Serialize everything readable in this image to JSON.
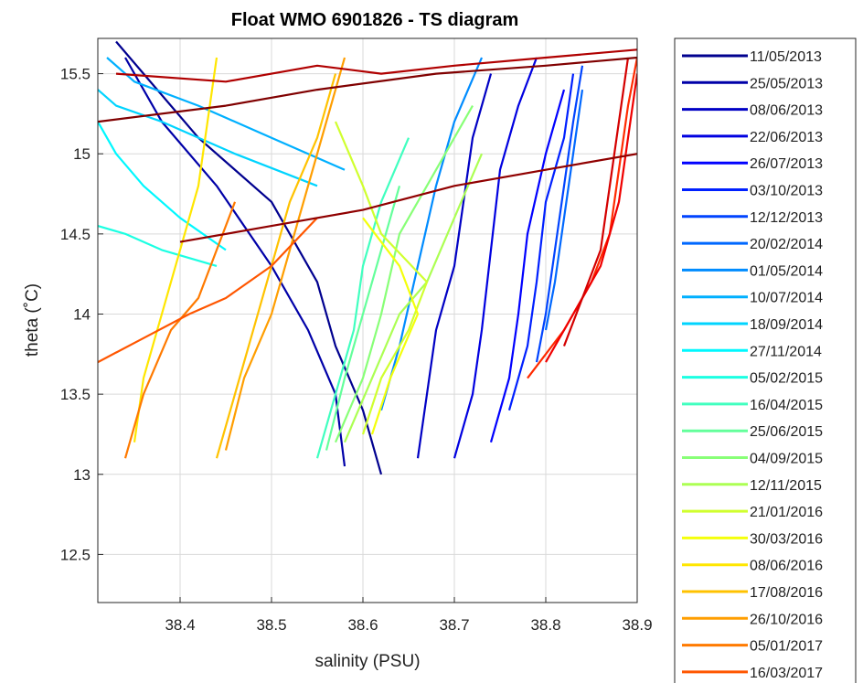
{
  "chart_data": {
    "type": "line",
    "title": "Float WMO 6901826 - TS diagram",
    "xlabel": "salinity (PSU)",
    "ylabel": "theta (˚C)",
    "xlim": [
      38.31,
      38.9
    ],
    "ylim": [
      12.2,
      15.72
    ],
    "xticks": [
      "38.4",
      "38.5",
      "38.6",
      "38.7",
      "38.8",
      "38.9"
    ],
    "yticks": [
      "12.5",
      "13",
      "13.5",
      "14",
      "14.5",
      "15",
      "15.5"
    ],
    "xtick_values": [
      38.4,
      38.5,
      38.6,
      38.7,
      38.8,
      38.9
    ],
    "ytick_values": [
      12.5,
      13,
      13.5,
      14,
      14.5,
      15,
      15.5
    ],
    "grid": true,
    "legend_placement": "outside-right",
    "colormap": "jet",
    "series": [
      {
        "name": "11/05/2013",
        "color": "#00008f",
        "points": [
          [
            38.62,
            13.0
          ],
          [
            38.6,
            13.4
          ],
          [
            38.57,
            13.8
          ],
          [
            38.55,
            14.2
          ],
          [
            38.5,
            14.7
          ],
          [
            38.42,
            15.1
          ],
          [
            38.36,
            15.5
          ],
          [
            38.33,
            15.7
          ]
        ]
      },
      {
        "name": "25/05/2013",
        "color": "#0000a8",
        "points": [
          [
            38.58,
            13.05
          ],
          [
            38.57,
            13.5
          ],
          [
            38.54,
            13.9
          ],
          [
            38.5,
            14.3
          ],
          [
            38.44,
            14.8
          ],
          [
            38.38,
            15.2
          ],
          [
            38.34,
            15.6
          ]
        ]
      },
      {
        "name": "08/06/2013",
        "color": "#0000c4",
        "points": [
          [
            38.66,
            13.1
          ],
          [
            38.67,
            13.5
          ],
          [
            38.68,
            13.9
          ],
          [
            38.7,
            14.3
          ],
          [
            38.71,
            14.7
          ],
          [
            38.72,
            15.1
          ],
          [
            38.74,
            15.5
          ]
        ]
      },
      {
        "name": "22/06/2013",
        "color": "#0000e0",
        "points": [
          [
            38.7,
            13.1
          ],
          [
            38.72,
            13.5
          ],
          [
            38.73,
            13.9
          ],
          [
            38.74,
            14.4
          ],
          [
            38.75,
            14.9
          ],
          [
            38.77,
            15.3
          ],
          [
            38.79,
            15.6
          ]
        ]
      },
      {
        "name": "26/07/2013",
        "color": "#0000ff",
        "points": [
          [
            38.74,
            13.2
          ],
          [
            38.76,
            13.6
          ],
          [
            38.77,
            14.0
          ],
          [
            38.78,
            14.5
          ],
          [
            38.8,
            15.0
          ],
          [
            38.82,
            15.4
          ]
        ]
      },
      {
        "name": "03/10/2013",
        "color": "#0020ff",
        "points": [
          [
            38.76,
            13.4
          ],
          [
            38.78,
            13.8
          ],
          [
            38.79,
            14.2
          ],
          [
            38.8,
            14.7
          ],
          [
            38.82,
            15.1
          ],
          [
            38.83,
            15.5
          ]
        ]
      },
      {
        "name": "12/12/2013",
        "color": "#0044ff",
        "points": [
          [
            38.79,
            13.7
          ],
          [
            38.8,
            14.0
          ],
          [
            38.81,
            14.4
          ],
          [
            38.82,
            14.8
          ],
          [
            38.83,
            15.2
          ],
          [
            38.84,
            15.55
          ]
        ]
      },
      {
        "name": "20/02/2014",
        "color": "#0068ff",
        "points": [
          [
            38.8,
            13.9
          ],
          [
            38.81,
            14.2
          ],
          [
            38.82,
            14.6
          ],
          [
            38.83,
            15.0
          ],
          [
            38.84,
            15.4
          ]
        ]
      },
      {
        "name": "01/05/2014",
        "color": "#008cff",
        "points": [
          [
            38.62,
            13.4
          ],
          [
            38.64,
            13.8
          ],
          [
            38.66,
            14.3
          ],
          [
            38.68,
            14.8
          ],
          [
            38.7,
            15.2
          ],
          [
            38.73,
            15.6
          ]
        ]
      },
      {
        "name": "10/07/2014",
        "color": "#00b0ff",
        "points": [
          [
            38.58,
            14.9
          ],
          [
            38.5,
            15.1
          ],
          [
            38.42,
            15.3
          ],
          [
            38.35,
            15.45
          ],
          [
            38.32,
            15.6
          ]
        ]
      },
      {
        "name": "18/09/2014",
        "color": "#00d4ff",
        "points": [
          [
            38.55,
            14.8
          ],
          [
            38.46,
            15.0
          ],
          [
            38.38,
            15.2
          ],
          [
            38.33,
            15.3
          ],
          [
            38.31,
            15.4
          ]
        ]
      },
      {
        "name": "27/11/2014",
        "color": "#00f8ff",
        "points": [
          [
            38.45,
            14.4
          ],
          [
            38.4,
            14.6
          ],
          [
            38.36,
            14.8
          ],
          [
            38.33,
            15.0
          ],
          [
            38.31,
            15.2
          ]
        ]
      },
      {
        "name": "05/02/2015",
        "color": "#1cffe2",
        "points": [
          [
            38.44,
            14.3
          ],
          [
            38.38,
            14.4
          ],
          [
            38.34,
            14.5
          ],
          [
            38.31,
            14.55
          ]
        ]
      },
      {
        "name": "16/04/2015",
        "color": "#40ffbf",
        "points": [
          [
            38.55,
            13.1
          ],
          [
            38.57,
            13.5
          ],
          [
            38.59,
            13.9
          ],
          [
            38.6,
            14.3
          ],
          [
            38.62,
            14.7
          ],
          [
            38.65,
            15.1
          ]
        ]
      },
      {
        "name": "25/06/2015",
        "color": "#64ff9b",
        "points": [
          [
            38.56,
            13.15
          ],
          [
            38.58,
            13.6
          ],
          [
            38.6,
            14.0
          ],
          [
            38.62,
            14.4
          ],
          [
            38.64,
            14.8
          ]
        ]
      },
      {
        "name": "04/09/2015",
        "color": "#88ff77",
        "points": [
          [
            38.57,
            13.2
          ],
          [
            38.6,
            13.6
          ],
          [
            38.62,
            14.0
          ],
          [
            38.64,
            14.5
          ],
          [
            38.68,
            14.9
          ],
          [
            38.72,
            15.3
          ]
        ]
      },
      {
        "name": "12/11/2015",
        "color": "#acff53",
        "points": [
          [
            38.58,
            13.2
          ],
          [
            38.61,
            13.6
          ],
          [
            38.64,
            14.0
          ],
          [
            38.67,
            14.2
          ],
          [
            38.7,
            14.6
          ],
          [
            38.73,
            15.0
          ]
        ]
      },
      {
        "name": "21/01/2016",
        "color": "#d0ff2f",
        "points": [
          [
            38.6,
            13.25
          ],
          [
            38.62,
            13.6
          ],
          [
            38.65,
            13.9
          ],
          [
            38.67,
            14.2
          ],
          [
            38.62,
            14.5
          ],
          [
            38.6,
            14.8
          ],
          [
            38.57,
            15.2
          ]
        ]
      },
      {
        "name": "30/03/2016",
        "color": "#f4ff0b",
        "points": [
          [
            38.61,
            13.25
          ],
          [
            38.63,
            13.6
          ],
          [
            38.66,
            14.0
          ],
          [
            38.64,
            14.3
          ],
          [
            38.6,
            14.6
          ]
        ]
      },
      {
        "name": "08/06/2016",
        "color": "#ffe600",
        "points": [
          [
            38.35,
            13.2
          ],
          [
            38.36,
            13.6
          ],
          [
            38.38,
            14.0
          ],
          [
            38.4,
            14.4
          ],
          [
            38.42,
            14.8
          ],
          [
            38.43,
            15.2
          ],
          [
            38.44,
            15.6
          ]
        ]
      },
      {
        "name": "17/08/2016",
        "color": "#ffc200",
        "points": [
          [
            38.44,
            13.1
          ],
          [
            38.46,
            13.5
          ],
          [
            38.48,
            13.9
          ],
          [
            38.5,
            14.3
          ],
          [
            38.52,
            14.7
          ],
          [
            38.55,
            15.1
          ],
          [
            38.57,
            15.5
          ]
        ]
      },
      {
        "name": "26/10/2016",
        "color": "#ff9e00",
        "points": [
          [
            38.45,
            13.15
          ],
          [
            38.47,
            13.6
          ],
          [
            38.5,
            14.0
          ],
          [
            38.52,
            14.4
          ],
          [
            38.54,
            14.8
          ],
          [
            38.56,
            15.2
          ],
          [
            38.58,
            15.6
          ]
        ]
      },
      {
        "name": "05/01/2017",
        "color": "#ff7a00",
        "points": [
          [
            38.34,
            13.1
          ],
          [
            38.36,
            13.5
          ],
          [
            38.39,
            13.9
          ],
          [
            38.42,
            14.1
          ],
          [
            38.44,
            14.4
          ],
          [
            38.46,
            14.7
          ]
        ]
      },
      {
        "name": "16/03/2017",
        "color": "#ff5600",
        "points": [
          [
            38.31,
            13.7
          ],
          [
            38.36,
            13.85
          ],
          [
            38.41,
            14.0
          ],
          [
            38.45,
            14.1
          ],
          [
            38.5,
            14.3
          ],
          [
            38.55,
            14.6
          ]
        ]
      }
    ],
    "extra_curves": [
      {
        "color": "#ff2a00",
        "points": [
          [
            38.78,
            13.6
          ],
          [
            38.82,
            13.9
          ],
          [
            38.85,
            14.2
          ],
          [
            38.87,
            14.5
          ],
          [
            38.88,
            14.9
          ],
          [
            38.89,
            15.3
          ],
          [
            38.9,
            15.6
          ]
        ]
      },
      {
        "color": "#f00000",
        "points": [
          [
            38.8,
            13.7
          ],
          [
            38.83,
            14.0
          ],
          [
            38.86,
            14.3
          ],
          [
            38.88,
            14.7
          ],
          [
            38.89,
            15.1
          ],
          [
            38.9,
            15.5
          ]
        ]
      },
      {
        "color": "#d40000",
        "points": [
          [
            38.82,
            13.8
          ],
          [
            38.84,
            14.1
          ],
          [
            38.86,
            14.4
          ],
          [
            38.87,
            14.8
          ],
          [
            38.88,
            15.2
          ],
          [
            38.89,
            15.6
          ]
        ]
      },
      {
        "color": "#b00000",
        "points": [
          [
            38.33,
            15.5
          ],
          [
            38.45,
            15.45
          ],
          [
            38.55,
            15.55
          ],
          [
            38.62,
            15.5
          ],
          [
            38.7,
            15.55
          ],
          [
            38.8,
            15.6
          ],
          [
            38.9,
            15.65
          ]
        ]
      },
      {
        "color": "#900000",
        "points": [
          [
            38.4,
            14.45
          ],
          [
            38.5,
            14.55
          ],
          [
            38.6,
            14.65
          ],
          [
            38.7,
            14.8
          ],
          [
            38.8,
            14.9
          ],
          [
            38.9,
            15.0
          ]
        ]
      },
      {
        "color": "#800000",
        "points": [
          [
            38.31,
            15.2
          ],
          [
            38.45,
            15.3
          ],
          [
            38.55,
            15.4
          ],
          [
            38.68,
            15.5
          ],
          [
            38.8,
            15.55
          ],
          [
            38.9,
            15.6
          ]
        ]
      }
    ]
  }
}
